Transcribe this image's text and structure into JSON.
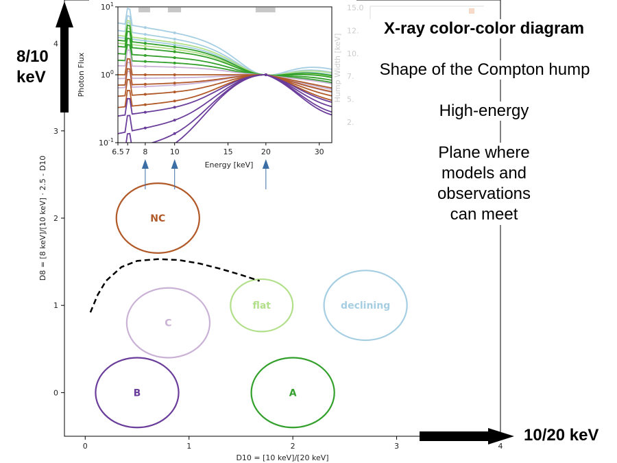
{
  "colors": {
    "A": "#33a02c",
    "B": "#6a3d9a",
    "C": "#cab2d6",
    "NC": "#b15928",
    "flat": "#b2df8a",
    "declining": "#a6cee3",
    "arrow_blue": "#3b6ea5",
    "shade_gray": "#c8c8c8"
  },
  "annotations": {
    "title": "X-ray color-color diagram",
    "line2": "Shape of the Compton hump",
    "line3": "High-energy",
    "line4": [
      "Plane where",
      "models and",
      "observations",
      "can meet"
    ]
  },
  "side_labels": {
    "y_arrow_label": [
      "8/10",
      "keV"
    ],
    "x_arrow_label": "10/20 keV"
  },
  "chart_data": [
    {
      "type": "scatter",
      "name": "main",
      "xlabel": "D10 = [10 keV]/[20 keV]",
      "ylabel": "D8 = [8 keV]/[10 keV] · 2.5 - D10",
      "xlim": [
        -0.2,
        4.0
      ],
      "ylim": [
        -0.5,
        4.5
      ],
      "xticks": [
        "0",
        "1",
        "2",
        "3",
        "4"
      ],
      "yticks": [
        "0",
        "1",
        "2",
        "3",
        "4"
      ],
      "regions": [
        {
          "label": "NC",
          "cx": 0.7,
          "cy": 2.0,
          "rx": 0.4,
          "ry": 0.4,
          "color": "NC"
        },
        {
          "label": "C",
          "cx": 0.8,
          "cy": 0.8,
          "rx": 0.4,
          "ry": 0.4,
          "color": "C"
        },
        {
          "label": "flat",
          "cx": 1.7,
          "cy": 1.0,
          "rx": 0.3,
          "ry": 0.3,
          "color": "flat"
        },
        {
          "label": "declining",
          "cx": 2.7,
          "cy": 1.0,
          "rx": 0.4,
          "ry": 0.4,
          "color": "declining"
        },
        {
          "label": "B",
          "cx": 0.5,
          "cy": 0.0,
          "rx": 0.4,
          "ry": 0.4,
          "color": "B"
        },
        {
          "label": "A",
          "cx": 2.0,
          "cy": 0.0,
          "rx": 0.4,
          "ry": 0.4,
          "color": "A"
        }
      ],
      "dashed_curve": [
        [
          0.05,
          0.92
        ],
        [
          0.12,
          1.12
        ],
        [
          0.2,
          1.28
        ],
        [
          0.35,
          1.44
        ],
        [
          0.5,
          1.51
        ],
        [
          0.7,
          1.53
        ],
        [
          0.9,
          1.52
        ],
        [
          1.1,
          1.48
        ],
        [
          1.3,
          1.42
        ],
        [
          1.5,
          1.35
        ],
        [
          1.68,
          1.28
        ]
      ]
    },
    {
      "type": "line",
      "name": "inset",
      "xlabel": "Energy [keV]",
      "ylabel": "Photon Flux",
      "right_ylabel": "Hump Width [keV]",
      "log_x": true,
      "log_y": true,
      "xlim": [
        6.5,
        33
      ],
      "ylim": [
        0.1,
        10
      ],
      "xticks": [
        {
          "v": 6.5,
          "t": "6.5"
        },
        {
          "v": 7,
          "t": "7"
        },
        {
          "v": 8,
          "t": "8"
        },
        {
          "v": 10,
          "t": "10"
        },
        {
          "v": 15,
          "t": "15"
        },
        {
          "v": 20,
          "t": "20"
        },
        {
          "v": 30,
          "t": "30"
        }
      ],
      "yticks": [
        {
          "v": 10,
          "t": "10^1"
        },
        {
          "v": 1,
          "t": "10^0"
        },
        {
          "v": 0.1,
          "t": "10^-1"
        }
      ],
      "right_yticks": [
        "15.0",
        "12.",
        "10.",
        "7.",
        "5.",
        "2."
      ],
      "arrow_energies": [
        8,
        10,
        20
      ],
      "gray_bands": [
        [
          7.6,
          8.3
        ],
        [
          9.5,
          10.5
        ],
        [
          18.5,
          21.5
        ]
      ],
      "series": [
        {
          "color": "declining",
          "norm": 4.2,
          "slope": -0.75
        },
        {
          "color": "declining",
          "norm": 3.4,
          "slope": -0.65
        },
        {
          "color": "declining",
          "norm": 2.8,
          "slope": -0.55
        },
        {
          "color": "flat",
          "norm": 3.0,
          "slope": -0.55
        },
        {
          "color": "flat",
          "norm": 2.4,
          "slope": -0.45
        },
        {
          "color": "A",
          "norm": 2.6,
          "slope": -0.5
        },
        {
          "color": "A",
          "norm": 2.2,
          "slope": -0.4
        },
        {
          "color": "A",
          "norm": 1.8,
          "slope": -0.3
        },
        {
          "color": "A",
          "norm": 1.5,
          "slope": -0.2
        },
        {
          "color": "C",
          "norm": 1.3,
          "slope": -0.1
        },
        {
          "color": "C",
          "norm": 0.9,
          "slope": 0.05
        },
        {
          "color": "C",
          "norm": 0.7,
          "slope": 0.2
        },
        {
          "color": "NC",
          "norm": 1.0,
          "slope": 0.0
        },
        {
          "color": "NC",
          "norm": 0.75,
          "slope": 0.15
        },
        {
          "color": "NC",
          "norm": 0.55,
          "slope": 0.3
        },
        {
          "color": "NC",
          "norm": 0.4,
          "slope": 0.45
        },
        {
          "color": "B",
          "norm": 0.32,
          "slope": 0.6
        },
        {
          "color": "B",
          "norm": 0.2,
          "slope": 0.9
        },
        {
          "color": "B",
          "norm": 0.12,
          "slope": 1.2
        },
        {
          "color": "B",
          "norm": 0.08,
          "slope": 1.5
        }
      ]
    }
  ]
}
